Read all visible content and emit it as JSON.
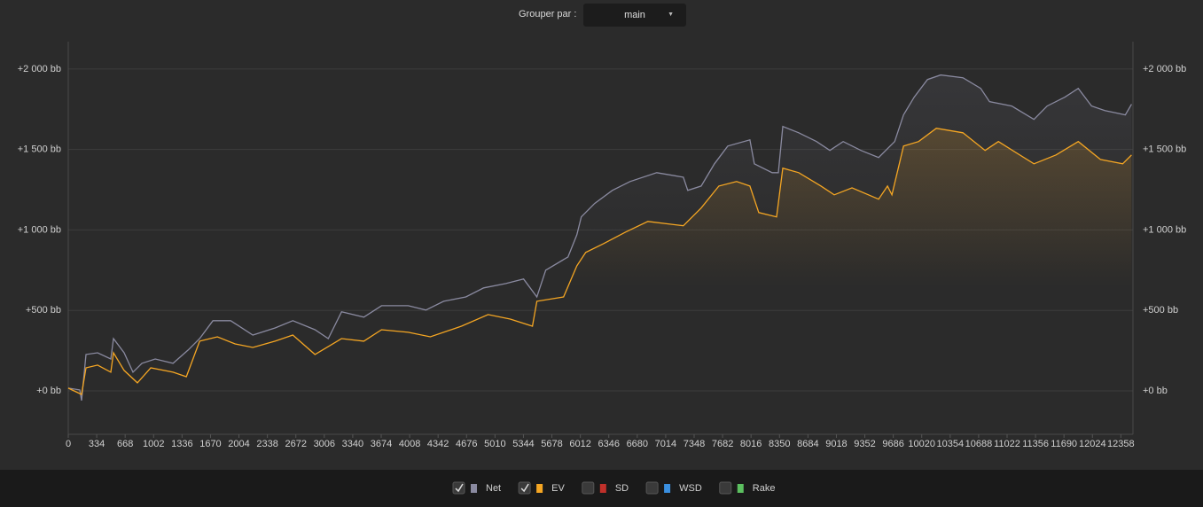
{
  "controls": {
    "group_label": "Grouper par :",
    "group_value": "main"
  },
  "chart_data": {
    "type": "line",
    "xlim": [
      0,
      12500
    ],
    "ylim": [
      -270,
      2170
    ],
    "xticks": [
      0,
      334,
      668,
      1002,
      1336,
      1670,
      2004,
      2338,
      2672,
      3006,
      3340,
      3674,
      4008,
      4342,
      4676,
      5010,
      5344,
      5678,
      6012,
      6346,
      6680,
      7014,
      7348,
      7682,
      8016,
      8350,
      8684,
      9018,
      9352,
      9686,
      10020,
      10354,
      10688,
      11022,
      11356,
      11690,
      12024,
      12358
    ],
    "yticks": [
      {
        "value": 0,
        "label": "+0 bb"
      },
      {
        "value": 500,
        "label": "+500 bb"
      },
      {
        "value": 1000,
        "label": "+1 000 bb"
      },
      {
        "value": 1500,
        "label": "+1 500 bb"
      },
      {
        "value": 2000,
        "label": "+2 000 bb"
      }
    ],
    "grid": true,
    "series": [
      {
        "name": "Net",
        "color": "#8a8aa0",
        "checked": true,
        "x": [
          0,
          135,
          156,
          208,
          344,
          500,
          531,
          656,
          760,
          865,
          1021,
          1230,
          1407,
          1542,
          1699,
          1907,
          2167,
          2428,
          2636,
          2897,
          3053,
          3209,
          3470,
          3678,
          3991,
          4199,
          4408,
          4668,
          4877,
          5137,
          5346,
          5502,
          5606,
          5867,
          5971,
          6023,
          6179,
          6387,
          6596,
          6909,
          7221,
          7273,
          7430,
          7586,
          7743,
          8003,
          8055,
          8264,
          8337,
          8389,
          8576,
          8785,
          8941,
          9098,
          9306,
          9514,
          9702,
          9806,
          9931,
          10087,
          10243,
          10504,
          10712,
          10816,
          11076,
          11337,
          11493,
          11701,
          11858,
          12014,
          12170,
          12410,
          12483
        ],
        "values": [
          17,
          6,
          -60,
          226,
          237,
          198,
          325,
          237,
          116,
          171,
          198,
          171,
          254,
          325,
          436,
          436,
          347,
          391,
          436,
          380,
          325,
          491,
          458,
          529,
          529,
          502,
          557,
          584,
          640,
          667,
          695,
          584,
          750,
          832,
          970,
          1081,
          1164,
          1246,
          1301,
          1356,
          1328,
          1246,
          1273,
          1411,
          1521,
          1560,
          1411,
          1356,
          1356,
          1643,
          1604,
          1549,
          1494,
          1549,
          1494,
          1450,
          1549,
          1715,
          1825,
          1935,
          1963,
          1946,
          1880,
          1797,
          1770,
          1687,
          1770,
          1825,
          1880,
          1770,
          1742,
          1715,
          1781
        ]
      },
      {
        "name": "EV",
        "color": "#f5a623",
        "checked": true,
        "x": [
          0,
          156,
          208,
          344,
          500,
          531,
          656,
          812,
          969,
          1230,
          1386,
          1542,
          1751,
          1959,
          2167,
          2428,
          2636,
          2897,
          3209,
          3470,
          3678,
          3991,
          4251,
          4616,
          4929,
          5189,
          5450,
          5502,
          5815,
          5971,
          6075,
          6283,
          6544,
          6805,
          7221,
          7430,
          7638,
          7847,
          8003,
          8107,
          8316,
          8389,
          8576,
          8837,
          8993,
          9202,
          9514,
          9618,
          9670,
          9806,
          9983,
          10191,
          10504,
          10764,
          10920,
          11337,
          11597,
          11858,
          12118,
          12379,
          12483
        ],
        "values": [
          17,
          -22,
          143,
          160,
          116,
          237,
          127,
          50,
          143,
          116,
          88,
          309,
          336,
          292,
          270,
          309,
          347,
          226,
          325,
          309,
          380,
          364,
          336,
          402,
          474,
          446,
          402,
          557,
          584,
          777,
          860,
          915,
          987,
          1053,
          1026,
          1136,
          1273,
          1301,
          1273,
          1108,
          1081,
          1384,
          1356,
          1273,
          1218,
          1262,
          1191,
          1273,
          1218,
          1521,
          1549,
          1632,
          1604,
          1494,
          1549,
          1411,
          1466,
          1549,
          1438,
          1411,
          1466
        ]
      }
    ],
    "legend": [
      {
        "name": "Net",
        "color": "#8a8aa0",
        "checked": true
      },
      {
        "name": "EV",
        "color": "#f5a623",
        "checked": true
      },
      {
        "name": "SD",
        "color": "#c0302a",
        "checked": false
      },
      {
        "name": "WSD",
        "color": "#3a8fe0",
        "checked": false
      },
      {
        "name": "Rake",
        "color": "#5cc060",
        "checked": false
      }
    ]
  }
}
